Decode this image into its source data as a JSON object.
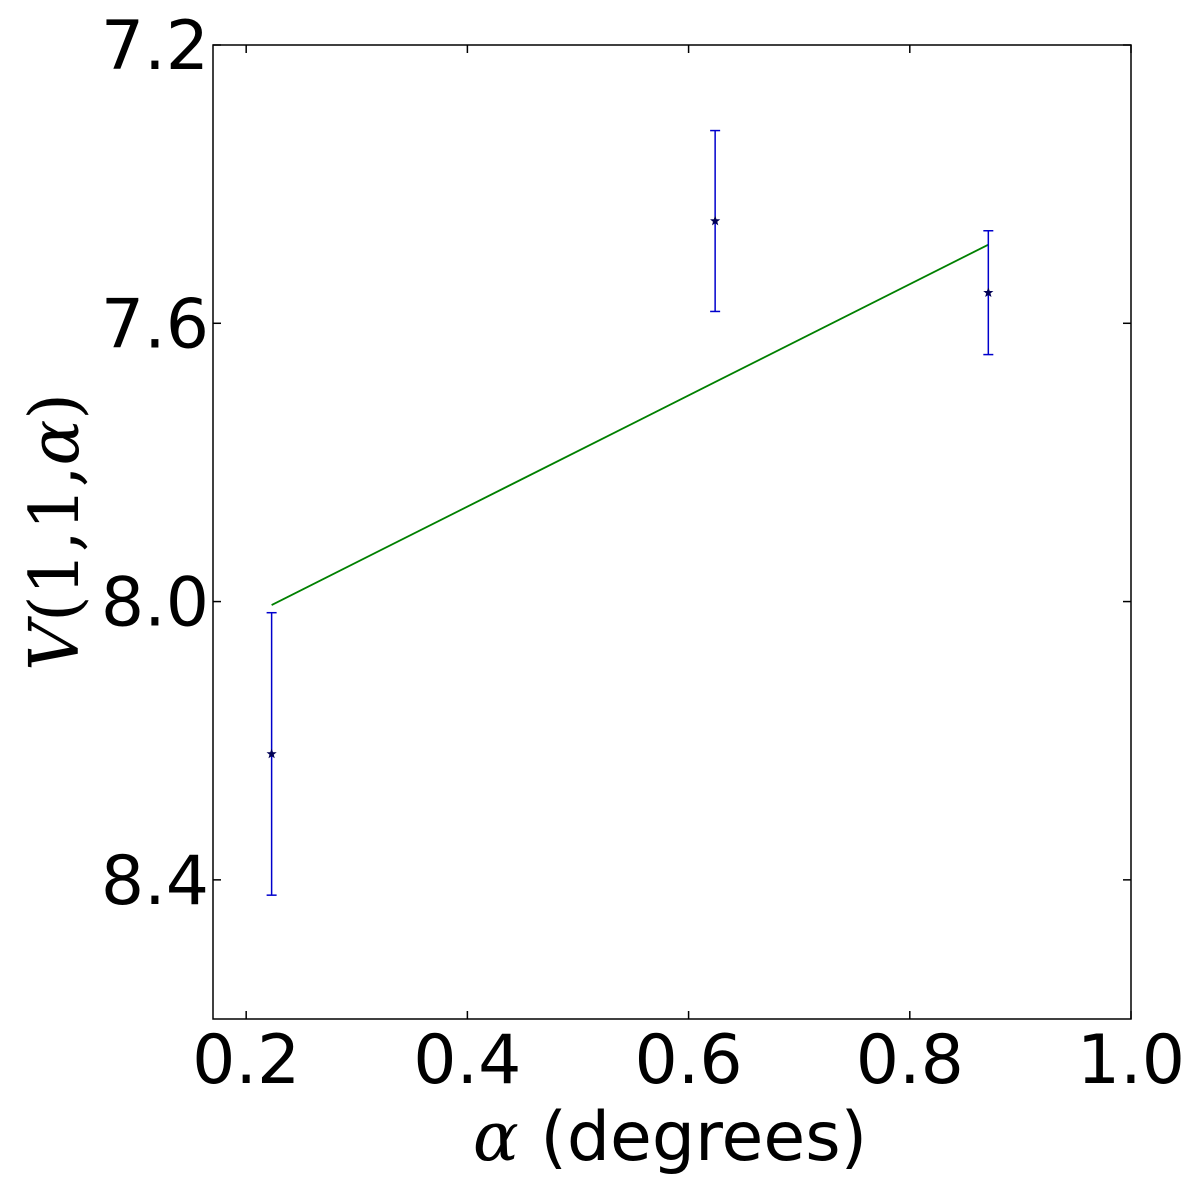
{
  "chart_data": {
    "type": "scatter",
    "title": "",
    "xlabel_symbol": "α",
    "xlabel": " (degrees)",
    "ylabel": {
      "func": "V",
      "args": "(1,1,",
      "symbol": "α",
      "close": ")"
    },
    "xlim": [
      0.17,
      1.0
    ],
    "ylim": [
      8.6,
      7.2
    ],
    "y_inverted": true,
    "x_ticks": [
      "0.2",
      "0.4",
      "0.6",
      "0.8",
      "1.0"
    ],
    "y_ticks": [
      "7.2",
      "7.6",
      "8.0",
      "8.4"
    ],
    "grid": false,
    "legend": "none",
    "series": [
      {
        "kind": "errorbar",
        "marker": "star",
        "color": "#0000cc",
        "marker_color": "#000055",
        "points": [
          {
            "x": 0.223,
            "y": 8.219,
            "err": 0.203
          },
          {
            "x": 0.624,
            "y": 7.453,
            "err": 0.13
          },
          {
            "x": 0.871,
            "y": 7.556,
            "err": 0.089
          }
        ]
      },
      {
        "kind": "line",
        "color": "#008000",
        "x": [
          0.223,
          0.871
        ],
        "y": [
          8.005,
          7.487
        ]
      }
    ]
  }
}
